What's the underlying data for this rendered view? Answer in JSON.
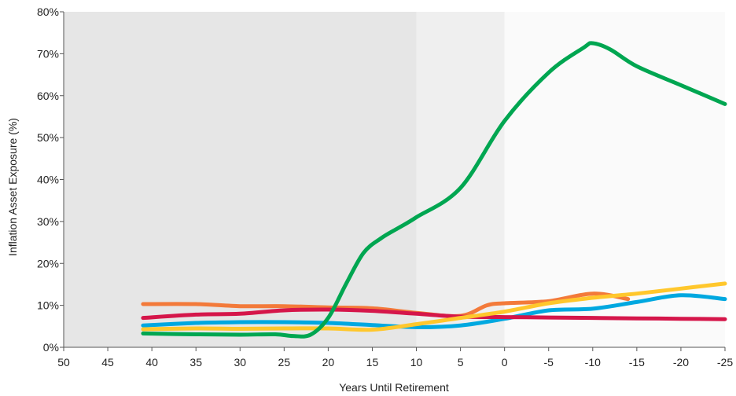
{
  "chart_data": {
    "type": "line",
    "title": "",
    "xlabel": "Years Until Retirement",
    "ylabel": "Inflation Asset Exposure (%)",
    "xlim": [
      50,
      -25
    ],
    "ylim": [
      0,
      80
    ],
    "x_ticks": [
      "50",
      "45",
      "40",
      "35",
      "30",
      "25",
      "20",
      "15",
      "10",
      "5",
      "0",
      "-5",
      "-10",
      "-15",
      "-20",
      "-25"
    ],
    "y_ticks": [
      "0%",
      "10%",
      "20%",
      "30%",
      "40%",
      "50%",
      "60%",
      "70%",
      "80%"
    ],
    "shaded_regions": [
      {
        "from": 50,
        "to": 10,
        "color": "#e6e6e6"
      },
      {
        "from": 10,
        "to": 0,
        "color": "#efefef"
      },
      {
        "from": 0,
        "to": -25,
        "color": "#fafafa"
      }
    ],
    "series": [
      {
        "color": "#00a651",
        "x": [
          41,
          35,
          30,
          26,
          24,
          22,
          20,
          18,
          16,
          14,
          12,
          10,
          5,
          0,
          -5,
          -9,
          -10,
          -12,
          -15,
          -20,
          -25
        ],
        "y": [
          3.3,
          3.1,
          3.0,
          3.1,
          2.7,
          3.0,
          7.0,
          15.0,
          22.5,
          26.0,
          28.5,
          31.0,
          38.0,
          54.0,
          65.5,
          71.5,
          72.5,
          71.0,
          67.0,
          62.5,
          58.0
        ]
      },
      {
        "color": "#f37a3a",
        "x": [
          41,
          35,
          30,
          25,
          20,
          15,
          10,
          5,
          2,
          0,
          -5,
          -10,
          -14
        ],
        "y": [
          10.3,
          10.3,
          9.8,
          9.8,
          9.5,
          9.3,
          8.2,
          7.5,
          10.0,
          10.5,
          11.0,
          12.8,
          11.5
        ]
      },
      {
        "color": "#00a8e0",
        "x": [
          41,
          35,
          30,
          25,
          20,
          15,
          10,
          5,
          0,
          -5,
          -10,
          -15,
          -20,
          -25
        ],
        "y": [
          5.2,
          5.8,
          6.0,
          6.0,
          5.8,
          5.3,
          4.8,
          5.2,
          6.8,
          8.8,
          9.2,
          10.8,
          12.4,
          11.5
        ]
      },
      {
        "color": "#d5164a",
        "x": [
          41,
          35,
          30,
          25,
          20,
          15,
          10,
          5,
          0,
          -5,
          -10,
          -15,
          -20,
          -25
        ],
        "y": [
          7.0,
          7.8,
          8.0,
          8.8,
          9.0,
          8.7,
          8.0,
          7.3,
          7.2,
          7.1,
          7.0,
          6.9,
          6.8,
          6.7
        ]
      },
      {
        "color": "#ffc72c",
        "x": [
          41,
          35,
          30,
          25,
          20,
          15,
          10,
          5,
          0,
          -5,
          -10,
          -15,
          -20,
          -25
        ],
        "y": [
          4.3,
          4.5,
          4.4,
          4.5,
          4.5,
          4.2,
          5.5,
          7.0,
          8.5,
          10.5,
          11.8,
          12.8,
          14.0,
          15.2
        ]
      }
    ]
  }
}
